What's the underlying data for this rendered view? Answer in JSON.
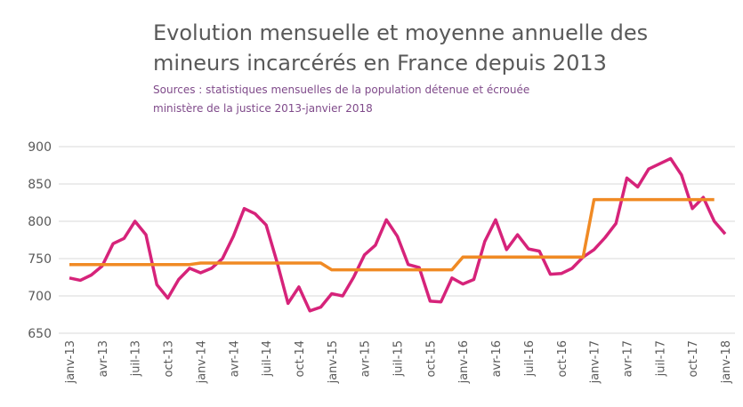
{
  "chart_data": {
    "type": "line",
    "title": [
      "Evolution mensuelle et moyenne annuelle des",
      "mineurs incarcérés en France depuis 2013"
    ],
    "subtitle": [
      "Sources : statistiques mensuelles de la population détenue et écrouée",
      "ministère de la justice 2013-janvier 2018"
    ],
    "categories": [
      "janv-13",
      null,
      null,
      "avr-13",
      null,
      null,
      "juil-13",
      null,
      null,
      "oct-13",
      null,
      null,
      "janv-14",
      null,
      null,
      "avr-14",
      null,
      null,
      "juil-14",
      null,
      null,
      "oct-14",
      null,
      null,
      "janv-15",
      null,
      null,
      "avr-15",
      null,
      null,
      "juil-15",
      null,
      null,
      "oct-15",
      null,
      null,
      "janv-16",
      null,
      null,
      "avr-16",
      null,
      null,
      "juil-16",
      null,
      null,
      "oct-16",
      null,
      null,
      "janv-17",
      null,
      null,
      "avr-17",
      null,
      null,
      "juil-17",
      null,
      null,
      "oct-17",
      null,
      null,
      "janv-18"
    ],
    "series": [
      {
        "color": "#d6237a",
        "values": [
          724,
          721,
          728,
          740,
          770,
          777,
          800,
          782,
          715,
          697,
          722,
          737,
          731,
          737,
          750,
          780,
          817,
          810,
          795,
          745,
          690,
          712,
          680,
          685,
          703,
          700,
          725,
          755,
          768,
          802,
          780,
          742,
          738,
          693,
          692,
          724,
          716,
          722,
          773,
          802,
          762,
          782,
          763,
          760,
          729,
          730,
          737,
          752,
          762,
          778,
          797,
          858,
          846,
          870,
          877,
          884,
          862,
          817,
          832,
          800,
          783
        ]
      },
      {
        "color": "#f08a24",
        "values": [
          742,
          742,
          742,
          742,
          742,
          742,
          742,
          742,
          742,
          742,
          742,
          742,
          744,
          744,
          744,
          744,
          744,
          744,
          744,
          744,
          744,
          744,
          744,
          744,
          735,
          735,
          735,
          735,
          735,
          735,
          735,
          735,
          735,
          735,
          735,
          735,
          752,
          752,
          752,
          752,
          752,
          752,
          752,
          752,
          752,
          752,
          752,
          752,
          829,
          829,
          829,
          829,
          829,
          829,
          829,
          829,
          829,
          829,
          829,
          829,
          null
        ]
      }
    ],
    "ylim": [
      650,
      900
    ],
    "yticks": [
      650,
      700,
      750,
      800,
      850,
      900
    ],
    "grid": true
  }
}
